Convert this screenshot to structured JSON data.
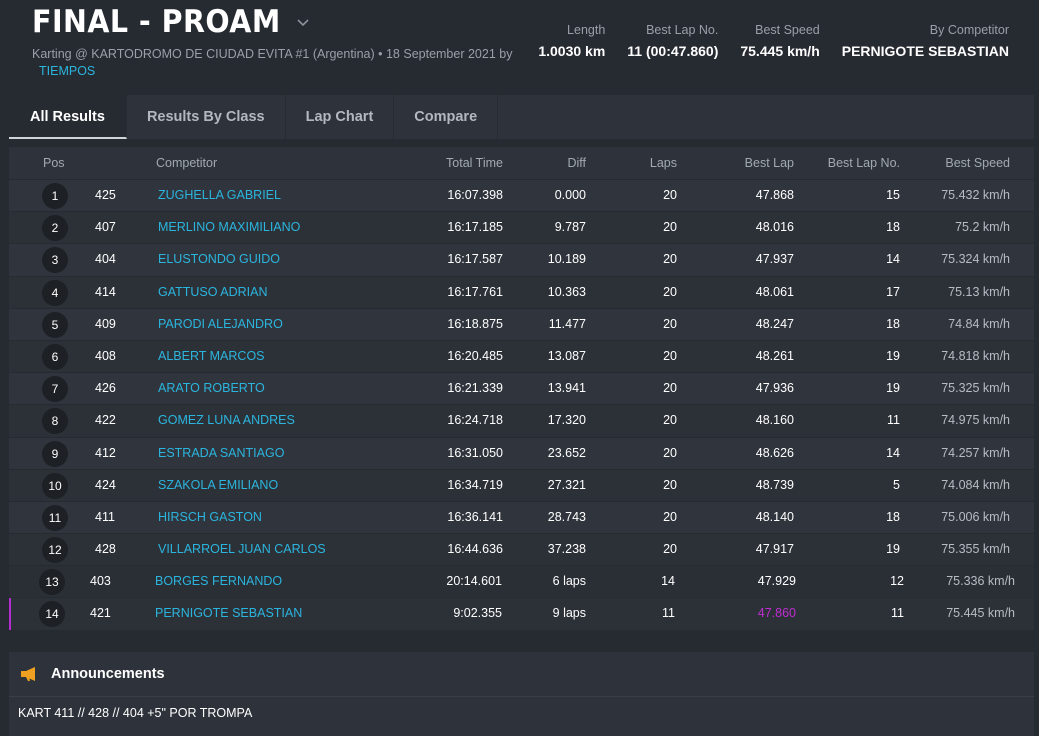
{
  "event": {
    "title": "FINAL - PROAM",
    "subtitle": "Karting @ KARTODROMO DE CIUDAD EVITA #1 (Argentina) • 18 September 2021 by",
    "organizer": "TIEMPOS"
  },
  "stats": [
    {
      "label": "Length",
      "value": "1.0030 km"
    },
    {
      "label": "Best Lap No.",
      "value": "11 (00:47.860)"
    },
    {
      "label": "Best Speed",
      "value": "75.445 km/h"
    },
    {
      "label": "By Competitor",
      "value": "PERNIGOTE SEBASTIAN"
    }
  ],
  "tabs": [
    "All Results",
    "Results By Class",
    "Lap Chart",
    "Compare"
  ],
  "columns": {
    "pos": "Pos",
    "competitor": "Competitor",
    "total_time": "Total Time",
    "diff": "Diff",
    "laps": "Laps",
    "best_lap": "Best Lap",
    "best_lap_no": "Best Lap No.",
    "best_speed": "Best Speed"
  },
  "rows": [
    {
      "pos": "1",
      "num": "425",
      "name": "ZUGHELLA GABRIEL",
      "total": "16:07.398",
      "diff": "0.000",
      "laps": "20",
      "best": "47.868",
      "bln": "15",
      "speed": "75.432 km/h"
    },
    {
      "pos": "2",
      "num": "407",
      "name": "MERLINO MAXIMILIANO",
      "total": "16:17.185",
      "diff": "9.787",
      "laps": "20",
      "best": "48.016",
      "bln": "18",
      "speed": "75.2 km/h"
    },
    {
      "pos": "3",
      "num": "404",
      "name": "ELUSTONDO GUIDO",
      "total": "16:17.587",
      "diff": "10.189",
      "laps": "20",
      "best": "47.937",
      "bln": "14",
      "speed": "75.324 km/h"
    },
    {
      "pos": "4",
      "num": "414",
      "name": "GATTUSO ADRIAN",
      "total": "16:17.761",
      "diff": "10.363",
      "laps": "20",
      "best": "48.061",
      "bln": "17",
      "speed": "75.13 km/h"
    },
    {
      "pos": "5",
      "num": "409",
      "name": "PARODI ALEJANDRO",
      "total": "16:18.875",
      "diff": "11.477",
      "laps": "20",
      "best": "48.247",
      "bln": "18",
      "speed": "74.84 km/h"
    },
    {
      "pos": "6",
      "num": "408",
      "name": "ALBERT MARCOS",
      "total": "16:20.485",
      "diff": "13.087",
      "laps": "20",
      "best": "48.261",
      "bln": "19",
      "speed": "74.818 km/h"
    },
    {
      "pos": "7",
      "num": "426",
      "name": "ARATO ROBERTO",
      "total": "16:21.339",
      "diff": "13.941",
      "laps": "20",
      "best": "47.936",
      "bln": "19",
      "speed": "75.325 km/h"
    },
    {
      "pos": "8",
      "num": "422",
      "name": "GOMEZ LUNA ANDRES",
      "total": "16:24.718",
      "diff": "17.320",
      "laps": "20",
      "best": "48.160",
      "bln": "11",
      "speed": "74.975 km/h"
    },
    {
      "pos": "9",
      "num": "412",
      "name": "ESTRADA SANTIAGO",
      "total": "16:31.050",
      "diff": "23.652",
      "laps": "20",
      "best": "48.626",
      "bln": "14",
      "speed": "74.257 km/h"
    },
    {
      "pos": "10",
      "num": "424",
      "name": "SZAKOLA EMILIANO",
      "total": "16:34.719",
      "diff": "27.321",
      "laps": "20",
      "best": "48.739",
      "bln": "5",
      "speed": "74.084 km/h"
    },
    {
      "pos": "11",
      "num": "411",
      "name": "HIRSCH GASTON",
      "total": "16:36.141",
      "diff": "28.743",
      "laps": "20",
      "best": "48.140",
      "bln": "18",
      "speed": "75.006 km/h"
    },
    {
      "pos": "12",
      "num": "428",
      "name": "VILLARROEL JUAN CARLOS",
      "total": "16:44.636",
      "diff": "37.238",
      "laps": "20",
      "best": "47.917",
      "bln": "19",
      "speed": "75.355 km/h"
    },
    {
      "pos": "13",
      "num": "403",
      "name": "BORGES FERNANDO",
      "total": "20:14.601",
      "diff": "6 laps",
      "laps": "14",
      "best": "47.929",
      "bln": "12",
      "speed": "75.336 km/h"
    },
    {
      "pos": "14",
      "num": "421",
      "name": "PERNIGOTE SEBASTIAN",
      "total": "9:02.355",
      "diff": "9 laps",
      "laps": "11",
      "best": "47.860",
      "bln": "11",
      "speed": "75.445 km/h"
    }
  ],
  "announcements": {
    "title": "Announcements",
    "text": "KART 411 // 428 // 404 +5\" POR TROMPA"
  },
  "colors": {
    "accent_link": "#2bb5de",
    "best_lap_highlight": "#c02dd1",
    "background": "#262a31",
    "panel": "#2e333b",
    "megaphone": "#f0a020"
  }
}
